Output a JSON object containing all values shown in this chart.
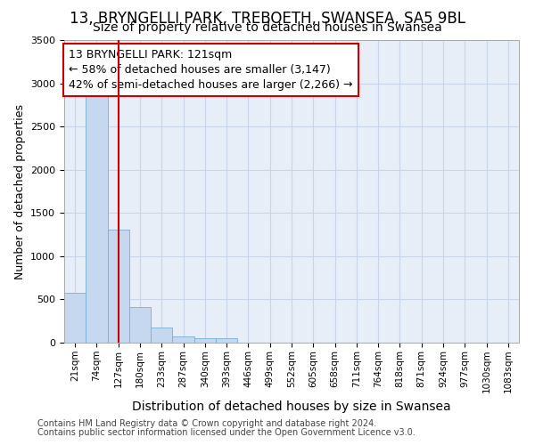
{
  "title_line1": "13, BRYNGELLI PARK, TREBOETH, SWANSEA, SA5 9BL",
  "title_line2": "Size of property relative to detached houses in Swansea",
  "xlabel": "Distribution of detached houses by size in Swansea",
  "ylabel": "Number of detached properties",
  "footer_line1": "Contains HM Land Registry data © Crown copyright and database right 2024.",
  "footer_line2": "Contains public sector information licensed under the Open Government Licence v3.0.",
  "annotation_line1": "13 BRYNGELLI PARK: 121sqm",
  "annotation_line2": "← 58% of detached houses are smaller (3,147)",
  "annotation_line3": "42% of semi-detached houses are larger (2,266) →",
  "bar_color": "#c5d8f0",
  "bar_edge_color": "#7aadd4",
  "grid_color": "#c8d4e8",
  "background_color": "#e8eef8",
  "vline_color": "#cc0000",
  "categories": [
    "21sqm",
    "74sqm",
    "127sqm",
    "180sqm",
    "233sqm",
    "287sqm",
    "340sqm",
    "393sqm",
    "446sqm",
    "499sqm",
    "552sqm",
    "605sqm",
    "658sqm",
    "711sqm",
    "764sqm",
    "818sqm",
    "871sqm",
    "924sqm",
    "977sqm",
    "1030sqm",
    "1083sqm"
  ],
  "values": [
    580,
    2900,
    1310,
    415,
    170,
    75,
    55,
    50,
    0,
    0,
    0,
    0,
    0,
    0,
    0,
    0,
    0,
    0,
    0,
    0,
    0
  ],
  "vline_x": 2.0,
  "ylim": [
    0,
    3500
  ],
  "yticks": [
    0,
    500,
    1000,
    1500,
    2000,
    2500,
    3000,
    3500
  ],
  "title_fontsize": 12,
  "subtitle_fontsize": 10,
  "tick_fontsize": 7.5,
  "ylabel_fontsize": 9,
  "xlabel_fontsize": 10,
  "footer_fontsize": 7,
  "ann_fontsize": 9
}
